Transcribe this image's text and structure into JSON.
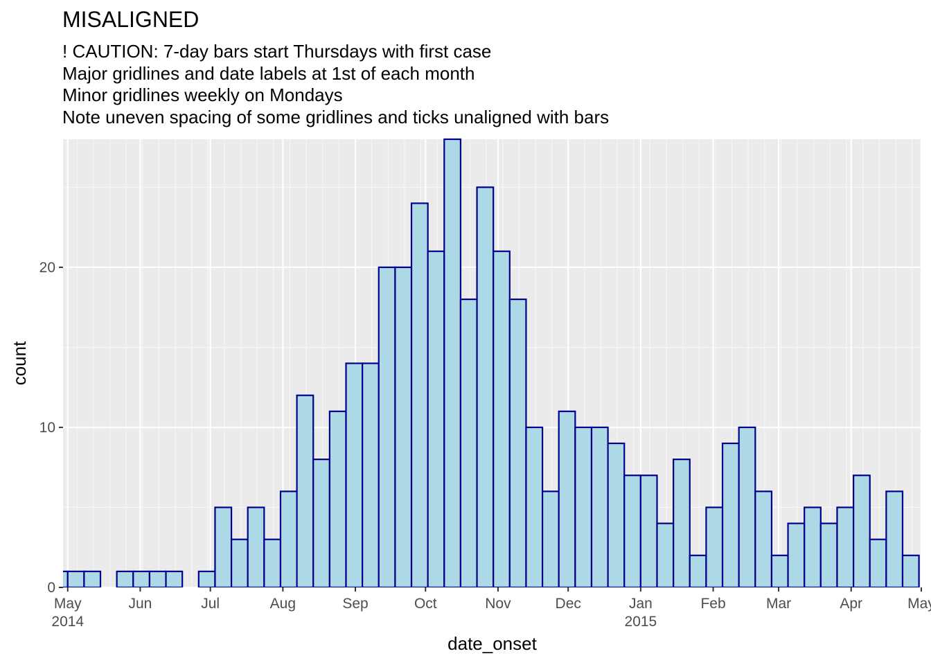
{
  "chart_data": {
    "type": "bar",
    "title": "MISALIGNED",
    "subtitle": [
      "! CAUTION: 7-day bars start Thursdays with first case",
      "Major gridlines and date labels at 1st of each month",
      "Minor gridlines weekly on Mondays",
      "Note uneven spacing of some gridlines and ticks unaligned with bars"
    ],
    "xlabel": "date_onset",
    "ylabel": "count",
    "ylim": [
      0,
      28
    ],
    "y_ticks": [
      0,
      10,
      20
    ],
    "xlim": [
      "2014-04-29",
      "2015-05-01"
    ],
    "x_ticks": [
      {
        "date": "2014-05-01",
        "label": "May",
        "year": "2014"
      },
      {
        "date": "2014-06-01",
        "label": "Jun",
        "year": ""
      },
      {
        "date": "2014-07-01",
        "label": "Jul",
        "year": ""
      },
      {
        "date": "2014-08-01",
        "label": "Aug",
        "year": ""
      },
      {
        "date": "2014-09-01",
        "label": "Sep",
        "year": ""
      },
      {
        "date": "2014-10-01",
        "label": "Oct",
        "year": ""
      },
      {
        "date": "2014-11-01",
        "label": "Nov",
        "year": ""
      },
      {
        "date": "2014-12-01",
        "label": "Dec",
        "year": ""
      },
      {
        "date": "2015-01-01",
        "label": "Jan",
        "year": "2015"
      },
      {
        "date": "2015-02-01",
        "label": "Feb",
        "year": ""
      },
      {
        "date": "2015-03-01",
        "label": "Mar",
        "year": ""
      },
      {
        "date": "2015-04-01",
        "label": "Apr",
        "year": ""
      },
      {
        "date": "2015-05-01",
        "label": "May",
        "year": ""
      }
    ],
    "minor_gridlines": "weekly on Mondays",
    "grid": true,
    "bin_width_days": 7,
    "bins": [
      {
        "start": "2014-04-24",
        "count": 1
      },
      {
        "start": "2014-05-01",
        "count": 1
      },
      {
        "start": "2014-05-08",
        "count": 1
      },
      {
        "start": "2014-05-15",
        "count": 0
      },
      {
        "start": "2014-05-22",
        "count": 1
      },
      {
        "start": "2014-05-29",
        "count": 1
      },
      {
        "start": "2014-06-05",
        "count": 1
      },
      {
        "start": "2014-06-12",
        "count": 1
      },
      {
        "start": "2014-06-19",
        "count": 0
      },
      {
        "start": "2014-06-26",
        "count": 1
      },
      {
        "start": "2014-07-03",
        "count": 5
      },
      {
        "start": "2014-07-10",
        "count": 3
      },
      {
        "start": "2014-07-17",
        "count": 5
      },
      {
        "start": "2014-07-24",
        "count": 3
      },
      {
        "start": "2014-07-31",
        "count": 6
      },
      {
        "start": "2014-08-07",
        "count": 12
      },
      {
        "start": "2014-08-14",
        "count": 8
      },
      {
        "start": "2014-08-21",
        "count": 11
      },
      {
        "start": "2014-08-28",
        "count": 14
      },
      {
        "start": "2014-09-04",
        "count": 14
      },
      {
        "start": "2014-09-11",
        "count": 20
      },
      {
        "start": "2014-09-18",
        "count": 20
      },
      {
        "start": "2014-09-25",
        "count": 24
      },
      {
        "start": "2014-10-02",
        "count": 21
      },
      {
        "start": "2014-10-09",
        "count": 28
      },
      {
        "start": "2014-10-16",
        "count": 18
      },
      {
        "start": "2014-10-23",
        "count": 25
      },
      {
        "start": "2014-10-30",
        "count": 21
      },
      {
        "start": "2014-11-06",
        "count": 18
      },
      {
        "start": "2014-11-13",
        "count": 10
      },
      {
        "start": "2014-11-20",
        "count": 6
      },
      {
        "start": "2014-11-27",
        "count": 11
      },
      {
        "start": "2014-12-04",
        "count": 10
      },
      {
        "start": "2014-12-11",
        "count": 10
      },
      {
        "start": "2014-12-18",
        "count": 9
      },
      {
        "start": "2014-12-25",
        "count": 7
      },
      {
        "start": "2015-01-01",
        "count": 7
      },
      {
        "start": "2015-01-08",
        "count": 4
      },
      {
        "start": "2015-01-15",
        "count": 8
      },
      {
        "start": "2015-01-22",
        "count": 2
      },
      {
        "start": "2015-01-29",
        "count": 5
      },
      {
        "start": "2015-02-05",
        "count": 9
      },
      {
        "start": "2015-02-12",
        "count": 10
      },
      {
        "start": "2015-02-19",
        "count": 6
      },
      {
        "start": "2015-02-26",
        "count": 2
      },
      {
        "start": "2015-03-05",
        "count": 4
      },
      {
        "start": "2015-03-12",
        "count": 5
      },
      {
        "start": "2015-03-19",
        "count": 4
      },
      {
        "start": "2015-03-26",
        "count": 5
      },
      {
        "start": "2015-04-02",
        "count": 7
      },
      {
        "start": "2015-04-09",
        "count": 3
      },
      {
        "start": "2015-04-16",
        "count": 6
      },
      {
        "start": "2015-04-23",
        "count": 2
      }
    ],
    "colors": {
      "bar_fill": "#add8e6",
      "bar_outline": "#00008b",
      "panel_background": "#ebebeb",
      "grid_major": "#ffffff",
      "grid_minor": "#f7f7f7",
      "axis_text": "#4d4d4d"
    }
  }
}
